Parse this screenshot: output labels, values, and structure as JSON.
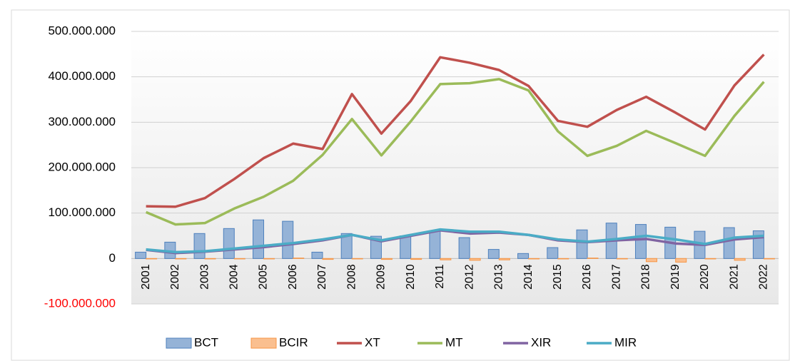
{
  "chart_data": {
    "type": "bar-line",
    "categories": [
      "2001",
      "2002",
      "2003",
      "2004",
      "2005",
      "2006",
      "2007",
      "2008",
      "2009",
      "2010",
      "2011",
      "2012",
      "2013",
      "2014",
      "2015",
      "2016",
      "2017",
      "2018",
      "2019",
      "2020",
      "2021",
      "2022"
    ],
    "series": [
      {
        "name": "BCT",
        "type": "bar",
        "color": "#95b3d7",
        "edge": "#4f81bd",
        "values": [
          14000000,
          36000000,
          55000000,
          66000000,
          85000000,
          82000000,
          14000000,
          55000000,
          49000000,
          50000000,
          61000000,
          46000000,
          20000000,
          11000000,
          24000000,
          63000000,
          78000000,
          75000000,
          69000000,
          60000000,
          68000000,
          61000000
        ]
      },
      {
        "name": "BCIR",
        "type": "bar",
        "color": "#fabf8f",
        "edge": "#f79646",
        "values": [
          -1000000,
          -1000000,
          -1000000,
          -1000000,
          -1000000,
          1000000,
          -2000000,
          -1000000,
          -2000000,
          -2000000,
          -3000000,
          -4000000,
          -3000000,
          -1000000,
          -1000000,
          1000000,
          -1000000,
          -7000000,
          -8000000,
          -1000000,
          -4000000,
          -1000000
        ]
      },
      {
        "name": "XT",
        "type": "line",
        "color": "#c0504d",
        "values": [
          115000000,
          114000000,
          133000000,
          175000000,
          221000000,
          253000000,
          241000000,
          362000000,
          275000000,
          347000000,
          443000000,
          431000000,
          415000000,
          380000000,
          303000000,
          290000000,
          327000000,
          356000000,
          321000000,
          284000000,
          381000000,
          449000000
        ]
      },
      {
        "name": "MT",
        "type": "line",
        "color": "#9bbb59",
        "values": [
          102000000,
          75000000,
          78000000,
          110000000,
          136000000,
          171000000,
          228000000,
          307000000,
          227000000,
          302000000,
          384000000,
          386000000,
          395000000,
          370000000,
          280000000,
          226000000,
          248000000,
          281000000,
          254000000,
          226000000,
          314000000,
          389000000
        ]
      },
      {
        "name": "XIR",
        "type": "line",
        "color": "#8064a2",
        "values": [
          19000000,
          12000000,
          15000000,
          20000000,
          25000000,
          32000000,
          40000000,
          52000000,
          38000000,
          50000000,
          62000000,
          55000000,
          57000000,
          52000000,
          40000000,
          36000000,
          40000000,
          43000000,
          33000000,
          30000000,
          42000000,
          47000000
        ]
      },
      {
        "name": "MIR",
        "type": "line",
        "color": "#4bacc6",
        "values": [
          20000000,
          14000000,
          16000000,
          22000000,
          28000000,
          34000000,
          42000000,
          52000000,
          40000000,
          52000000,
          64000000,
          59000000,
          59000000,
          52000000,
          42000000,
          37000000,
          43000000,
          50000000,
          42000000,
          32000000,
          46000000,
          50000000
        ]
      }
    ],
    "ylim": [
      -100000000,
      500000000
    ],
    "yticks": [
      {
        "value": -100000000,
        "label": "-100.000.000"
      },
      0,
      {
        "value": 100000000,
        "label": "100.000.000"
      },
      {
        "value": 200000000,
        "label": "200.000.000"
      },
      {
        "value": 300000000,
        "label": "300.000.000"
      },
      {
        "value": 400000000,
        "label": "400.000.000"
      },
      {
        "value": 500000000,
        "label": "500.000.000"
      }
    ],
    "negative_tick_color": "#ff0000",
    "grid": true,
    "legend": "bottom"
  }
}
